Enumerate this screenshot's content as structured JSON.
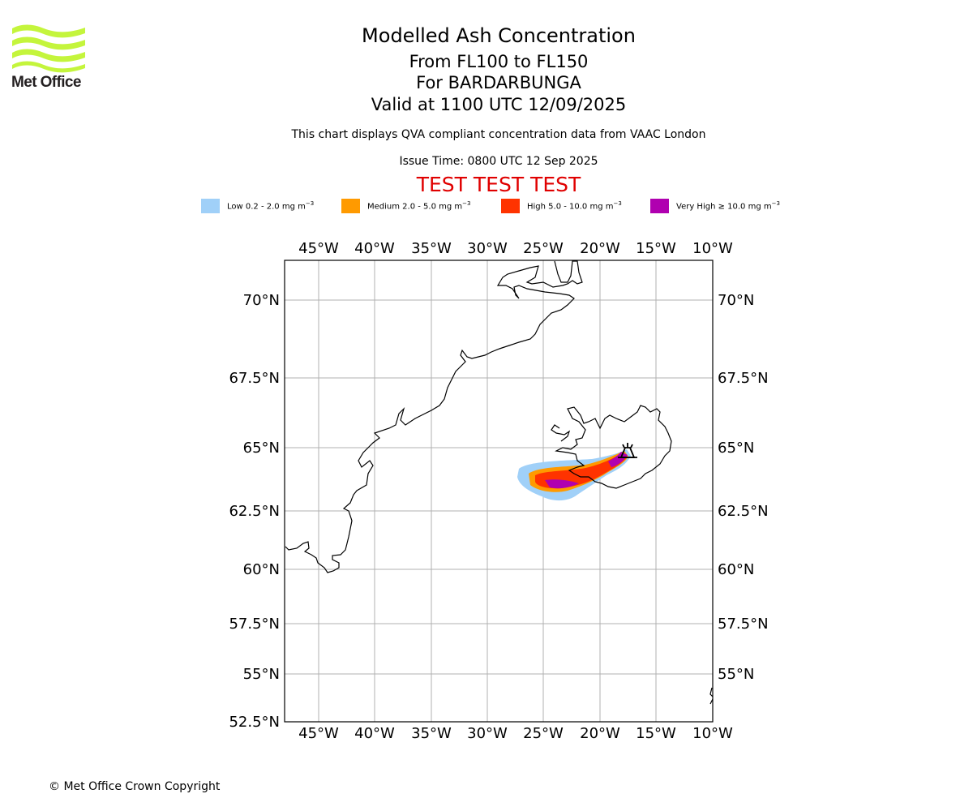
{
  "branding": {
    "logo_text": "Met Office",
    "logo_color": "#c4f53c"
  },
  "header": {
    "title": "Modelled Ash Concentration",
    "flight_levels": "From FL100 to FL150",
    "volcano": "For BARDARBUNGA",
    "valid_time": "Valid at 1100 UTC 12/09/2025",
    "description": "This chart displays QVA compliant concentration data from VAAC London",
    "issue_time": "Issue Time: 0800 UTC 12 Sep 2025",
    "test_banner": "TEST TEST TEST",
    "test_color": "#e00000"
  },
  "legend": [
    {
      "label": "Low 0.2 - 2.0 mg m",
      "color": "#a0d0f8"
    },
    {
      "label": "Medium 2.0 - 5.0 mg m",
      "color": "#ff9a00"
    },
    {
      "label": "High 5.0 - 10.0 mg m",
      "color": "#ff3300"
    },
    {
      "label": "Very High ≥ 10.0 mg m",
      "color": "#b000b0"
    }
  ],
  "legend_unit_exponent": "−3",
  "map": {
    "lon_ticks": [
      "45°W",
      "40°W",
      "35°W",
      "30°W",
      "25°W",
      "20°W",
      "15°W",
      "10°W"
    ],
    "lat_ticks": [
      "70°N",
      "67.5°N",
      "65°N",
      "62.5°N",
      "60°N",
      "57.5°N",
      "55°N",
      "52.5°N"
    ],
    "lon_range": [
      -48,
      -10
    ],
    "lat_range": [
      52.5,
      71.5
    ],
    "grid_color": "#b0b0b0",
    "volcano_symbol": "volcano-icon"
  },
  "footer": {
    "copyright": "© Met Office Crown Copyright"
  }
}
